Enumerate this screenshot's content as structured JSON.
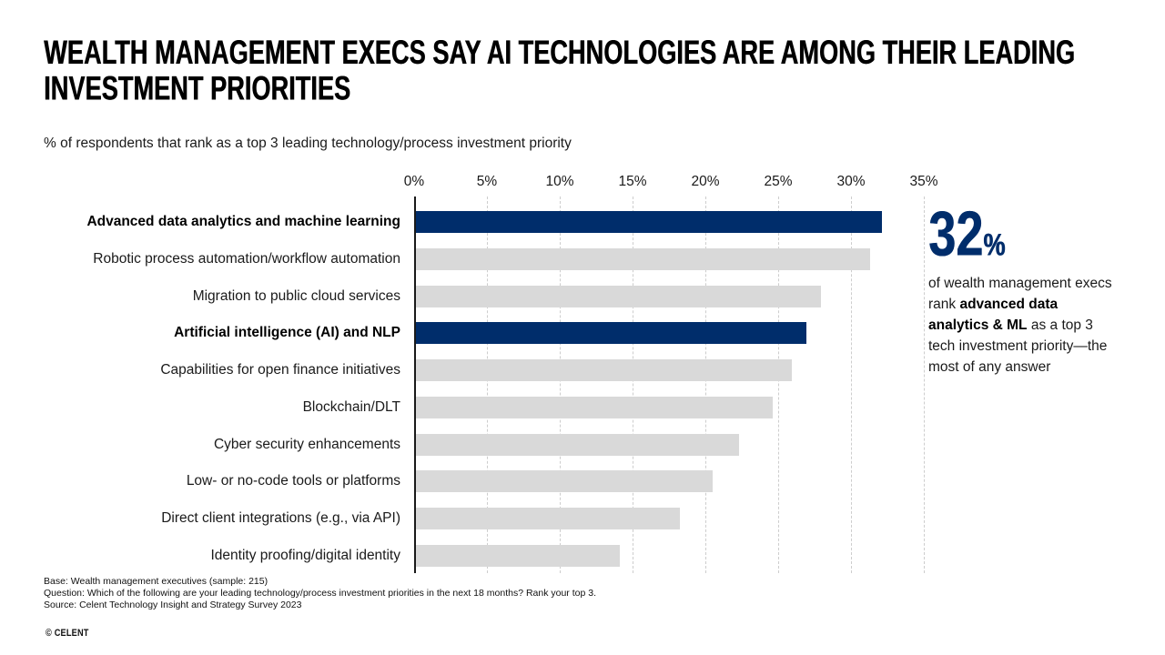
{
  "header": {
    "title_line1": "WEALTH MANAGEMENT EXECS SAY AI TECHNOLOGIES ARE AMONG THEIR LEADING",
    "title_line2": "INVESTMENT PRIORITIES",
    "subtitle": "% of respondents that rank as a top 3 leading technology/process investment priority"
  },
  "chart_data": {
    "type": "bar",
    "orientation": "horizontal",
    "title": "% of respondents that rank as a top 3 leading technology/process investment priority",
    "x_ticks": [
      "0%",
      "5%",
      "10%",
      "15%",
      "20%",
      "25%",
      "30%",
      "35%"
    ],
    "xlim": [
      0,
      35
    ],
    "grid": "vertical-dashed",
    "series": [
      {
        "label": "Advanced data analytics and machine learning",
        "value": 32,
        "highlighted": true
      },
      {
        "label": "Robotic process automation/workflow automation",
        "value": 31.2,
        "highlighted": false
      },
      {
        "label": "Migration to public cloud services",
        "value": 27.8,
        "highlighted": false
      },
      {
        "label": "Artificial intelligence (AI) and NLP",
        "value": 26.8,
        "highlighted": true
      },
      {
        "label": "Capabilities for open finance initiatives",
        "value": 25.8,
        "highlighted": false
      },
      {
        "label": "Blockchain/DLT",
        "value": 24.5,
        "highlighted": false
      },
      {
        "label": "Cyber security enhancements",
        "value": 22.2,
        "highlighted": false
      },
      {
        "label": "Low- or no-code tools or platforms",
        "value": 20.4,
        "highlighted": false
      },
      {
        "label": "Direct client integrations (e.g., via API)",
        "value": 18.1,
        "highlighted": false
      },
      {
        "label": "Identity proofing/digital identity",
        "value": 14,
        "highlighted": false
      }
    ],
    "colors": {
      "highlight": "#002D6B",
      "default": "#D9D9D9"
    }
  },
  "callout": {
    "big_number": "32",
    "percent_sign": "%",
    "text_pre": "of wealth management execs rank ",
    "text_bold": "advanced data analytics & ML",
    "text_post": " as a top 3 tech investment priority—the most of any answer"
  },
  "footnotes": {
    "base": "Base: Wealth management executives (sample: 215)",
    "question": "Question: Which of the following are your leading technology/process investment priorities in the next 18 months? Rank your top 3.",
    "source": "Source: Celent Technology Insight and Strategy Survey 2023"
  },
  "footer": {
    "copyright": "© CELENT"
  }
}
